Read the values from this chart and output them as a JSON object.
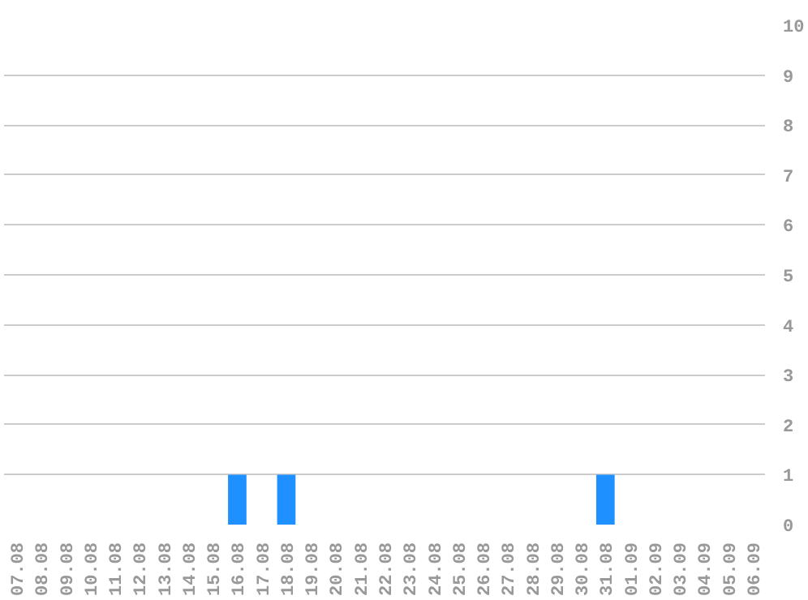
{
  "chart_data": {
    "type": "bar",
    "categories": [
      "07.08",
      "08.08",
      "09.08",
      "10.08",
      "11.08",
      "12.08",
      "13.08",
      "14.08",
      "15.08",
      "16.08",
      "17.08",
      "18.08",
      "19.08",
      "20.08",
      "21.08",
      "22.08",
      "23.08",
      "24.08",
      "25.08",
      "26.08",
      "27.08",
      "28.08",
      "29.08",
      "30.08",
      "31.08",
      "01.09",
      "02.09",
      "03.09",
      "04.09",
      "05.09",
      "06.09"
    ],
    "values": [
      0,
      0,
      0,
      0,
      0,
      0,
      0,
      0,
      0,
      1,
      0,
      1,
      0,
      0,
      0,
      0,
      0,
      0,
      0,
      0,
      0,
      0,
      0,
      0,
      1,
      0,
      0,
      0,
      0,
      0,
      0
    ],
    "color": "#1e90ff",
    "ylim": [
      0,
      10
    ],
    "yticks": [
      0,
      1,
      2,
      3,
      4,
      5,
      6,
      7,
      8,
      9,
      10
    ],
    "grid": "y"
  }
}
